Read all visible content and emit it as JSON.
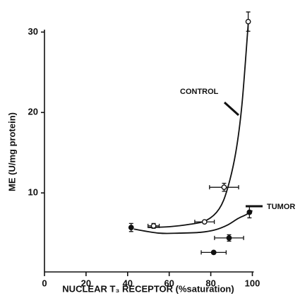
{
  "chart_data": {
    "type": "scatter",
    "xlabel": "NUCLEAR T₃ RECEPTOR (%saturation)",
    "ylabel": "ME (U/mg protein)",
    "xlim": [
      0,
      100
    ],
    "ylim": [
      0,
      30.3
    ],
    "xticks": [
      0,
      20,
      40,
      60,
      80,
      100
    ],
    "yticks": [
      10,
      20,
      30
    ],
    "series": [
      {
        "name": "CONTROL",
        "marker": "open",
        "color": "#111111",
        "x": [
          52.5,
          77,
          86.4,
          98
        ],
        "values": [
          5.9,
          6.4,
          10.7,
          31.3
        ],
        "xerr": [
          2.7,
          4.7,
          7,
          null
        ],
        "yerr": [
          0.3,
          null,
          0.5,
          1.2
        ],
        "fit_x": [
          50,
          60,
          70,
          78,
          84,
          88,
          92,
          95,
          98
        ],
        "fit_y": [
          5.7,
          5.8,
          6.1,
          6.6,
          8,
          10.5,
          15,
          21,
          31
        ]
      },
      {
        "name": "TUMOR",
        "marker": "filled",
        "color": "#111111",
        "x": [
          41.7,
          81.4,
          88.8,
          98.6
        ],
        "values": [
          5.7,
          2.6,
          4.4,
          7.6
        ],
        "xerr": [
          null,
          6,
          7,
          null
        ],
        "yerr": [
          0.5,
          null,
          0.4,
          0.7
        ],
        "fit_x": [
          43,
          55,
          65,
          75,
          82,
          88,
          93,
          97,
          100
        ],
        "fit_y": [
          5.5,
          5.0,
          5.0,
          5.1,
          5.4,
          6.0,
          6.8,
          7.3,
          7.8
        ]
      }
    ]
  }
}
